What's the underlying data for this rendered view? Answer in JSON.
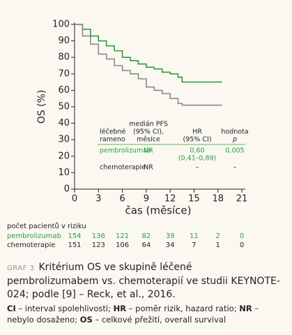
{
  "chart_data": {
    "type": "line",
    "step": true,
    "x_label": "čas (měsíce)",
    "y_label": "OS (%)",
    "x": [
      0,
      1,
      2,
      3,
      4,
      5,
      6,
      7,
      8,
      9,
      10,
      11,
      12,
      13,
      13.5,
      18.5
    ],
    "xlim": [
      0,
      21
    ],
    "xticks": [
      0,
      3,
      6,
      9,
      12,
      15,
      18,
      21
    ],
    "ylim": [
      0,
      100
    ],
    "yticks": [
      0,
      10,
      20,
      30,
      40,
      50,
      60,
      70,
      80,
      90,
      100
    ],
    "series": [
      {
        "name": "pembrolizumab",
        "color": "#2e9e3e",
        "values": [
          100,
          97,
          93,
          90,
          87,
          84,
          80,
          78,
          76,
          74,
          73,
          71,
          70,
          68,
          65,
          65
        ]
      },
      {
        "name": "chemoterapie",
        "color": "#8a8a8a",
        "values": [
          100,
          93,
          88,
          82,
          79,
          75,
          72,
          70,
          67,
          62,
          60,
          58,
          55,
          52,
          51,
          51
        ]
      }
    ],
    "annotation_table": {
      "headers": [
        [
          "léčebné",
          "rameno"
        ],
        [
          "medián PFS",
          "(95% CI),",
          "měsíce"
        ],
        [
          "HR",
          "(95% CI)"
        ],
        [
          "hodnota",
          "p"
        ]
      ],
      "rows": [
        [
          "pembrolizumab",
          "NR",
          [
            "0,60",
            "(0,41–0,89)"
          ],
          "0,005"
        ],
        [
          "chemoterapie",
          "NR",
          [
            "–"
          ],
          "–"
        ]
      ]
    },
    "risk_table": {
      "title": "počet pacientů v riziku",
      "rows": [
        {
          "name": "pembrolizumab",
          "values": [
            "154",
            "136",
            "121",
            "82",
            "39",
            "11",
            "2",
            "0"
          ]
        },
        {
          "name": "chemoterapie",
          "values": [
            "151",
            "123",
            "106",
            "64",
            "34",
            "7",
            "1",
            "0"
          ]
        }
      ]
    }
  },
  "caption": {
    "label": "GRAF 3",
    "text": "Kritérium OS ve skupině léčené pembrolizumabem vs. chemoterapií ve studii KEYNOTE-024; podle [9] – Reck, et al., 2016."
  },
  "footnote": [
    {
      "term": "CI",
      "text": " – interval spolehlivosti; "
    },
    {
      "term": "HR",
      "text": " – poměr rizik, hazard ratio; "
    },
    {
      "term": "NR",
      "text": " – nebylo dosaženo; "
    },
    {
      "term": "OS",
      "text": " – celkové přežití, overall survival"
    }
  ]
}
